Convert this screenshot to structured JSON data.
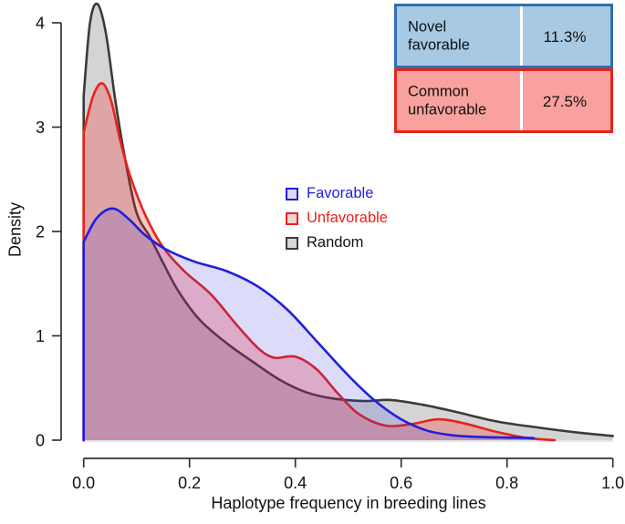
{
  "chart_data": {
    "type": "area",
    "title": "",
    "xlabel": "Haplotype frequency in breeding lines",
    "ylabel": "Density",
    "xlim": [
      0.0,
      1.0
    ],
    "ylim": [
      0,
      4.2
    ],
    "grid": false,
    "legend_position": "center",
    "x_ticks": [
      "0.0",
      "0.2",
      "0.4",
      "0.6",
      "0.8",
      "1.0"
    ],
    "x_tick_values": [
      0.0,
      0.2,
      0.4,
      0.6,
      0.8,
      1.0
    ],
    "y_ticks": [
      "0",
      "1",
      "2",
      "3",
      "4"
    ],
    "y_tick_values": [
      0,
      1,
      2,
      3,
      4
    ],
    "series": [
      {
        "name": "Random",
        "line_color": "#3b3b3b",
        "fill_color": "rgba(60,60,60,0.22)",
        "x": [
          0,
          0.012,
          0.026,
          0.042,
          0.06,
          0.08,
          0.1,
          0.125,
          0.15,
          0.18,
          0.22,
          0.27,
          0.32,
          0.37,
          0.42,
          0.47,
          0.53,
          0.58,
          0.64,
          0.7,
          0.78,
          0.86,
          0.93,
          1.0
        ],
        "y": [
          3.3,
          4.0,
          4.18,
          3.9,
          3.25,
          2.65,
          2.18,
          1.95,
          1.7,
          1.42,
          1.15,
          0.93,
          0.75,
          0.58,
          0.46,
          0.4,
          0.375,
          0.385,
          0.34,
          0.275,
          0.18,
          0.12,
          0.075,
          0.04
        ]
      },
      {
        "name": "Unfavorable",
        "line_color": "#e8231b",
        "fill_color": "rgba(255,30,30,0.26)",
        "x": [
          0,
          0.018,
          0.035,
          0.052,
          0.07,
          0.09,
          0.118,
          0.15,
          0.19,
          0.24,
          0.29,
          0.33,
          0.36,
          0.4,
          0.44,
          0.48,
          0.52,
          0.57,
          0.62,
          0.67,
          0.72,
          0.78,
          0.84,
          0.89
        ],
        "y": [
          2.95,
          3.3,
          3.42,
          3.25,
          2.85,
          2.5,
          2.14,
          1.85,
          1.62,
          1.4,
          1.1,
          0.88,
          0.79,
          0.8,
          0.68,
          0.45,
          0.25,
          0.14,
          0.155,
          0.2,
          0.16,
          0.08,
          0.02,
          0.0
        ]
      },
      {
        "name": "Favorable",
        "line_color": "#1f1fdd",
        "fill_color": "rgba(45,45,225,0.17)",
        "x": [
          0,
          0.025,
          0.055,
          0.085,
          0.115,
          0.155,
          0.21,
          0.27,
          0.33,
          0.385,
          0.44,
          0.5,
          0.55,
          0.6,
          0.65,
          0.7,
          0.75,
          0.8,
          0.85
        ],
        "y": [
          1.9,
          2.13,
          2.22,
          2.12,
          1.97,
          1.83,
          1.71,
          1.62,
          1.47,
          1.25,
          0.95,
          0.62,
          0.38,
          0.2,
          0.09,
          0.045,
          0.03,
          0.025,
          0.02
        ]
      }
    ]
  },
  "legend": {
    "items": [
      {
        "label": "Favorable",
        "swatch_border": "#1f1fdd",
        "swatch_fill": "#d9d9f5",
        "label_color": "#1f1fdd"
      },
      {
        "label": "Unfavorable",
        "swatch_border": "#e8231b",
        "swatch_fill": "#f9d2cf",
        "label_color": "#e8231b"
      },
      {
        "label": "Random",
        "swatch_border": "#3b3b3b",
        "swatch_fill": "#d6d6d6",
        "label_color": "#111111"
      }
    ]
  },
  "annotation": {
    "rows": [
      {
        "label": "Novel favorable",
        "value": "11.3%",
        "fill": "#a7c9e3",
        "border": "#2e6fae"
      },
      {
        "label": "Common unfavorable",
        "value": "27.5%",
        "fill": "#f9a19e",
        "border": "#e8231b"
      }
    ]
  },
  "colors": {
    "axis": "#333333",
    "baseline": "#dcdcdc",
    "background": "#ffffff"
  }
}
